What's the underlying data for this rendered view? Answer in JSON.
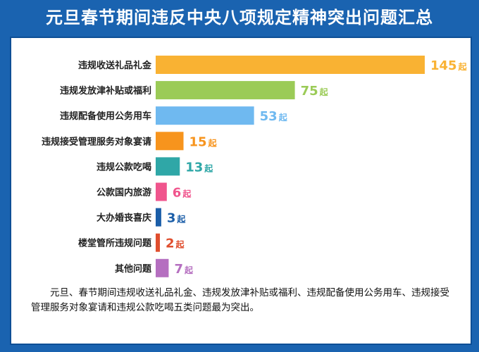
{
  "title": "元旦春节期间违反中央八项规定精神突出问题汇总",
  "footnote": "元旦、春节期间违规收送礼品礼金、违规发放津补贴或福利、违规配备使用公务用车、违规接受管理服务对象宴请和违规公款吃喝五类问题最为突出。",
  "chart_data": {
    "type": "bar",
    "orientation": "horizontal",
    "categories": [
      "违规收送礼品礼金",
      "违规发放津补贴或福利",
      "违规配备使用公务用车",
      "违规接受管理服务对象宴请",
      "违规公款吃喝",
      "公款国内旅游",
      "大办婚丧喜庆",
      "楼堂管所违规问题",
      "其他问题"
    ],
    "values": [
      145,
      75,
      53,
      15,
      13,
      6,
      3,
      2,
      7
    ],
    "value_unit": "起",
    "colors": [
      "#f9b233",
      "#9bcb57",
      "#6fb9f0",
      "#f7941d",
      "#2fa7a7",
      "#f0558d",
      "#1b5ea8",
      "#e04e2e",
      "#b56fc0"
    ],
    "xlim": [
      0,
      145
    ],
    "grid": false,
    "legend": "none"
  }
}
